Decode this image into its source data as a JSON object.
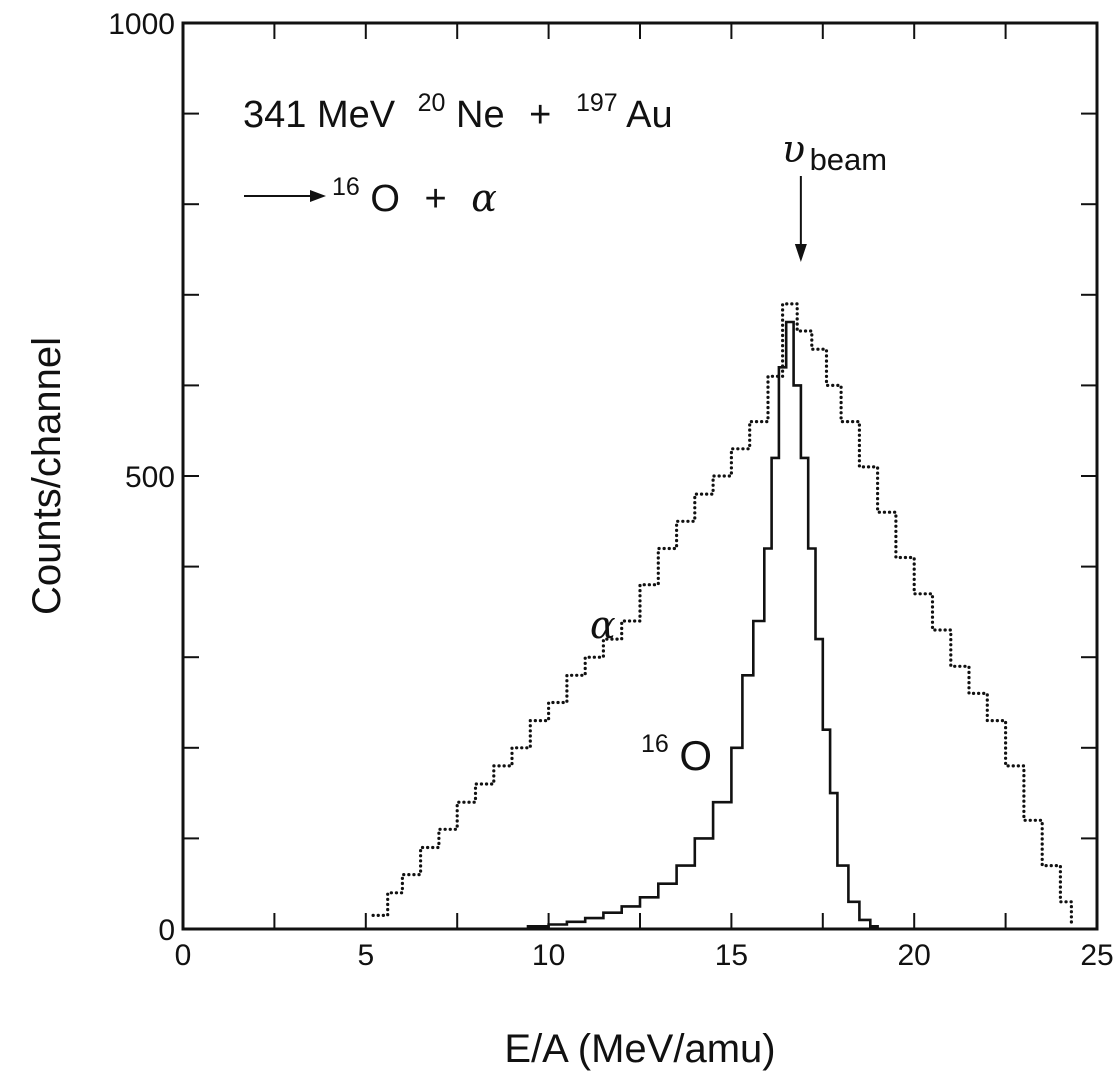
{
  "chart_data": {
    "type": "line",
    "xlabel": "E/A (MeV/amu)",
    "ylabel": "Counts/channel",
    "xlim": [
      0,
      25
    ],
    "ylim": [
      0,
      1000
    ],
    "x_ticks": [
      "0",
      "5",
      "10",
      "15",
      "20",
      "25"
    ],
    "y_ticks": [
      "0",
      "500",
      "1000"
    ],
    "grid": false,
    "annotations": {
      "reaction_line1": {
        "energy": "341 MeV",
        "proj_mass": "20",
        "proj": "Ne",
        "plus": "+",
        "targ_mass": "197",
        "targ": "Au"
      },
      "reaction_line2": {
        "frag_mass": "16",
        "frag": "O",
        "plus": "+",
        "alpha": "α"
      },
      "beam_symbol": "υ",
      "beam_sub": "beam",
      "beam_velocity_x": 16.9,
      "series_label_alpha": "α",
      "series_label_o16_mass": "16",
      "series_label_o16": "O"
    },
    "series": [
      {
        "name": "α",
        "style": "dotted",
        "x": [
          5.2,
          5.6,
          6.0,
          6.5,
          7.0,
          7.5,
          8.0,
          8.5,
          9.0,
          9.5,
          10.0,
          10.5,
          11.0,
          11.5,
          12.0,
          12.5,
          13.0,
          13.5,
          14.0,
          14.5,
          15.0,
          15.5,
          16.0,
          16.4,
          16.8,
          17.2,
          17.6,
          18.0,
          18.5,
          19.0,
          19.5,
          20.0,
          20.5,
          21.0,
          21.5,
          22.0,
          22.5,
          23.0,
          23.5,
          24.0,
          24.3
        ],
        "y": [
          15,
          40,
          60,
          90,
          110,
          140,
          160,
          180,
          200,
          230,
          250,
          280,
          300,
          320,
          340,
          380,
          420,
          450,
          480,
          500,
          530,
          560,
          610,
          690,
          660,
          640,
          600,
          560,
          510,
          460,
          410,
          370,
          330,
          290,
          260,
          230,
          180,
          120,
          70,
          30,
          5
        ]
      },
      {
        "name": "16O",
        "style": "solid",
        "x": [
          9.4,
          10.0,
          10.5,
          11.0,
          11.5,
          12.0,
          12.5,
          13.0,
          13.5,
          14.0,
          14.5,
          15.0,
          15.3,
          15.6,
          15.9,
          16.1,
          16.3,
          16.5,
          16.7,
          16.9,
          17.1,
          17.3,
          17.5,
          17.7,
          17.9,
          18.2,
          18.5,
          18.8,
          19.0
        ],
        "y": [
          3,
          5,
          8,
          12,
          18,
          25,
          35,
          50,
          70,
          100,
          140,
          200,
          280,
          340,
          420,
          520,
          620,
          670,
          600,
          520,
          420,
          320,
          220,
          150,
          70,
          30,
          10,
          3,
          0
        ]
      }
    ]
  }
}
